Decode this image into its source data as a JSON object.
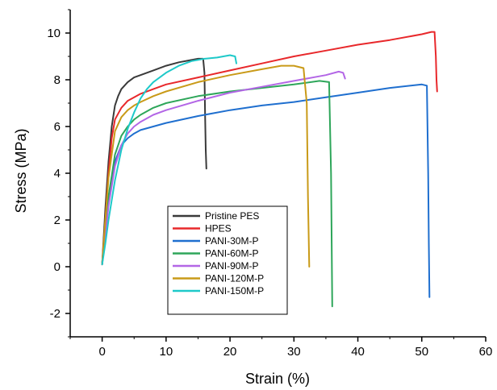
{
  "chart_data": {
    "type": "line",
    "title": "",
    "xlabel": "Strain (%)",
    "ylabel": "Stress (MPa)",
    "xlim": [
      -5,
      60
    ],
    "ylim": [
      -3,
      11
    ],
    "xticks": [
      0,
      10,
      20,
      30,
      40,
      50,
      60
    ],
    "xtick_labels": [
      "0",
      "10",
      "20",
      "30",
      "40",
      "50",
      "60"
    ],
    "yticks": [
      -2,
      0,
      2,
      4,
      6,
      8,
      10
    ],
    "ytick_labels": [
      "-2",
      "0",
      "2",
      "4",
      "6",
      "8",
      "10"
    ],
    "grid": false,
    "legend_position": "bottom-center",
    "series": [
      {
        "name": "Pristine PES",
        "color": "#3a3a3a",
        "x": [
          0,
          0.5,
          1,
          1.5,
          2,
          2.5,
          3,
          4,
          5,
          6,
          8,
          10,
          12,
          14,
          15,
          15.8,
          16,
          16.1,
          16.2,
          16.3
        ],
        "y": [
          0.1,
          2.5,
          4.5,
          6.0,
          6.9,
          7.3,
          7.6,
          7.9,
          8.1,
          8.2,
          8.4,
          8.6,
          8.75,
          8.85,
          8.9,
          8.9,
          8.3,
          6.5,
          5.0,
          4.2
        ]
      },
      {
        "name": "HPES",
        "color": "#e8282b",
        "x": [
          0,
          0.5,
          1,
          1.5,
          2,
          3,
          4,
          6,
          8,
          10,
          15,
          20,
          25,
          30,
          35,
          40,
          45,
          50,
          51.5,
          52,
          52.2,
          52.3,
          52.4
        ],
        "y": [
          0.1,
          2.0,
          4.0,
          5.5,
          6.3,
          6.8,
          7.1,
          7.4,
          7.6,
          7.8,
          8.1,
          8.4,
          8.7,
          9.0,
          9.25,
          9.5,
          9.7,
          9.95,
          10.05,
          10.05,
          9.0,
          8.0,
          7.5
        ]
      },
      {
        "name": "PANI-30M-P",
        "color": "#1f6fcf",
        "x": [
          0,
          0.5,
          1,
          2,
          3,
          4,
          5,
          6,
          8,
          10,
          15,
          20,
          25,
          30,
          35,
          40,
          45,
          50,
          50.8,
          51,
          51.1,
          51.2
        ],
        "y": [
          0.1,
          1.5,
          3.0,
          4.5,
          5.2,
          5.5,
          5.7,
          5.85,
          6.0,
          6.15,
          6.45,
          6.7,
          6.9,
          7.05,
          7.25,
          7.45,
          7.65,
          7.8,
          7.75,
          4.0,
          1.0,
          -1.3
        ]
      },
      {
        "name": "PANI-60M-P",
        "color": "#2ea65a",
        "x": [
          0,
          0.5,
          1,
          2,
          3,
          4,
          5,
          6,
          8,
          10,
          15,
          20,
          25,
          30,
          34,
          35.5,
          35.8,
          35.9,
          36
        ],
        "y": [
          0.1,
          1.5,
          3.0,
          4.8,
          5.6,
          6.0,
          6.3,
          6.5,
          6.8,
          7.0,
          7.3,
          7.5,
          7.65,
          7.8,
          7.95,
          7.9,
          4.0,
          1.0,
          -1.7
        ]
      },
      {
        "name": "PANI-90M-P",
        "color": "#b366e6",
        "x": [
          0,
          0.5,
          1,
          2,
          3,
          4,
          5,
          6,
          8,
          10,
          15,
          20,
          25,
          30,
          35,
          37,
          37.7,
          38
        ],
        "y": [
          0.1,
          1.3,
          2.6,
          4.3,
          5.2,
          5.7,
          6.0,
          6.2,
          6.5,
          6.7,
          7.1,
          7.45,
          7.7,
          7.95,
          8.2,
          8.35,
          8.3,
          8.05
        ]
      },
      {
        "name": "PANI-120M-P",
        "color": "#c99a18",
        "x": [
          0,
          0.5,
          1,
          2,
          3,
          4,
          5,
          6,
          8,
          10,
          15,
          20,
          25,
          28,
          30,
          31.5,
          32,
          32.2,
          32.4
        ],
        "y": [
          0.1,
          2.0,
          3.8,
          5.8,
          6.4,
          6.7,
          6.9,
          7.05,
          7.3,
          7.5,
          7.9,
          8.2,
          8.45,
          8.6,
          8.6,
          8.5,
          7.0,
          3.0,
          0.0
        ]
      },
      {
        "name": "PANI-150M-P",
        "color": "#1ec9c9",
        "x": [
          0,
          0.5,
          1,
          2,
          3,
          4,
          5,
          6,
          7,
          8,
          10,
          12,
          14,
          16,
          18,
          20,
          20.8,
          21
        ],
        "y": [
          0.1,
          1.0,
          2.0,
          3.7,
          5.0,
          5.9,
          6.6,
          7.2,
          7.6,
          7.9,
          8.3,
          8.6,
          8.8,
          8.9,
          8.95,
          9.05,
          9.0,
          8.7
        ]
      }
    ]
  }
}
